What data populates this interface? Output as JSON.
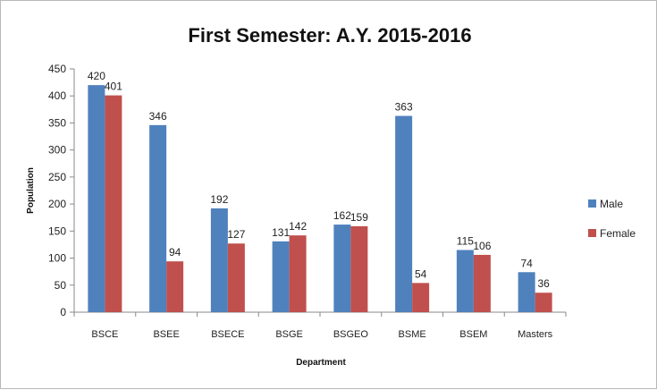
{
  "chart_data": {
    "type": "bar",
    "title": "First Semester: A.Y. 2015-2016",
    "xlabel": "Department",
    "ylabel": "Population",
    "categories": [
      "BSCE",
      "BSEE",
      "BSECE",
      "BSGE",
      "BSGEO",
      "BSME",
      "BSEM",
      "Masters"
    ],
    "series": [
      {
        "name": "Male",
        "color": "#4f81bd",
        "values": [
          420,
          346,
          192,
          131,
          162,
          363,
          115,
          74
        ]
      },
      {
        "name": "Female",
        "color": "#c0504d",
        "values": [
          401,
          94,
          127,
          142,
          159,
          54,
          106,
          36
        ]
      }
    ],
    "ylim": [
      0,
      450
    ],
    "yticks": [
      0,
      50,
      100,
      150,
      200,
      250,
      300,
      350,
      400,
      450
    ],
    "grid": false,
    "legend": "right"
  }
}
